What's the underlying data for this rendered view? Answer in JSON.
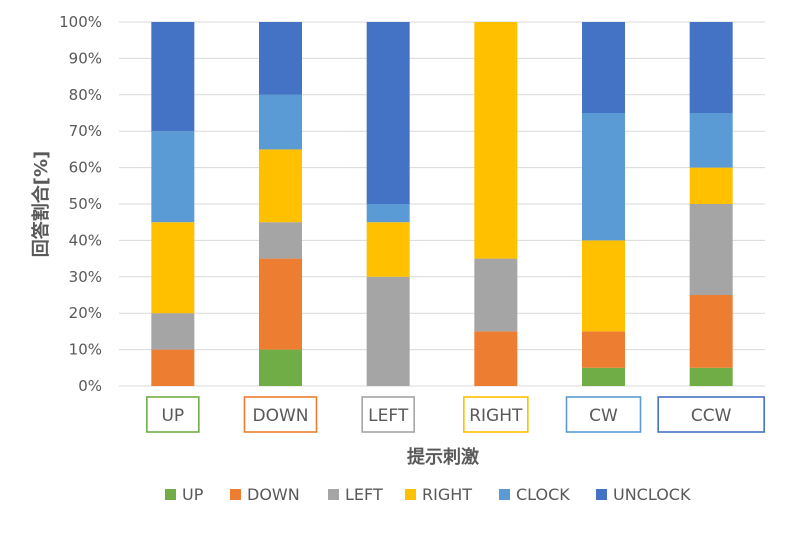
{
  "chart_data": {
    "type": "bar",
    "stacked": true,
    "xlabel": "提示刺激",
    "ylabel": "回答割合[%]",
    "ylim": [
      0,
      100
    ],
    "yticks": [
      "0%",
      "10%",
      "20%",
      "30%",
      "40%",
      "50%",
      "60%",
      "70%",
      "80%",
      "90%",
      "100%"
    ],
    "grid": true,
    "legend_position": "bottom",
    "categories": [
      "UP",
      "DOWN",
      "LEFT",
      "RIGHT",
      "CW",
      "CCW"
    ],
    "category_box_colors": [
      "#70ad47",
      "#ed7d31",
      "#a5a5a5",
      "#ffc000",
      "#5b9bd5",
      "#4472c4"
    ],
    "series": [
      {
        "name": "UP",
        "color": "#70ad47",
        "values": [
          0,
          10,
          0,
          0,
          5,
          5
        ]
      },
      {
        "name": "DOWN",
        "color": "#ed7d31",
        "values": [
          10,
          25,
          0,
          15,
          10,
          20
        ]
      },
      {
        "name": "LEFT",
        "color": "#a5a5a5",
        "values": [
          10,
          10,
          30,
          20,
          0,
          25
        ]
      },
      {
        "name": "RIGHT",
        "color": "#ffc000",
        "values": [
          25,
          20,
          15,
          65,
          25,
          10
        ]
      },
      {
        "name": "CLOCK",
        "color": "#5b9bd5",
        "values": [
          25,
          15,
          5,
          0,
          35,
          15
        ]
      },
      {
        "name": "UNCLOCK",
        "color": "#4472c4",
        "values": [
          30,
          20,
          50,
          0,
          25,
          25
        ]
      }
    ]
  }
}
